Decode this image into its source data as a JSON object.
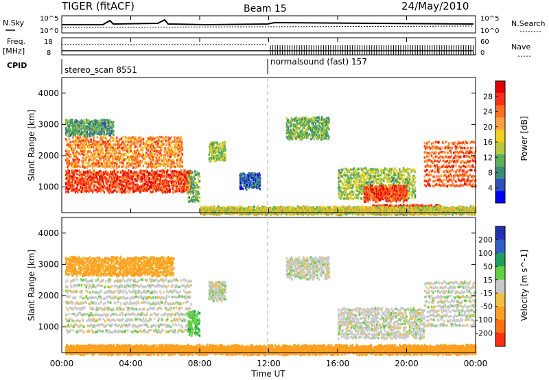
{
  "header": {
    "title": "TIGER (fitACF)",
    "beam": "Beam 15",
    "date": "24/May/2010"
  },
  "strips": {
    "nsky_label": "N.Sky",
    "nsky_ticks": [
      "10^5",
      "10^0"
    ],
    "nsearch_label": "N.Search",
    "nsearch_ticks": [
      "10^5",
      "10^0"
    ],
    "freq_label": "Freq.",
    "freq_unit": "[MHz]",
    "freq_ticks": [
      "18",
      "8"
    ],
    "nave_label": "Nave",
    "nave_ticks": [
      "60",
      "0"
    ],
    "cpid_label": "CPID",
    "cpid_segments": [
      {
        "name": "stereo_scan 8551",
        "start_hour": 0,
        "end_hour": 12
      },
      {
        "name": "normalsound (fast) 157",
        "start_hour": 12,
        "end_hour": 24
      }
    ]
  },
  "axes": {
    "ylabel": "Slant Range [km]",
    "xlabel": "Time UT",
    "x_ticks": [
      "00:00",
      "04:00",
      "08:00",
      "12:00",
      "16:00",
      "20:00",
      "00:00"
    ],
    "y_ticks": [
      "1000",
      "2000",
      "3000",
      "4000"
    ]
  },
  "power_scale": {
    "label": "Power [dB]",
    "ticks": [
      "4",
      "8",
      "12",
      "16",
      "20",
      "24",
      "28"
    ],
    "colors": [
      "#0000ff",
      "#2e50b8",
      "#3a8c78",
      "#5bb05b",
      "#b7c83c",
      "#f0d020",
      "#ffa040",
      "#ff7020",
      "#ff3018",
      "#e00000"
    ]
  },
  "velocity_scale": {
    "label": "Velocity [m s^-1]",
    "ticks": [
      "200",
      "100",
      "50",
      "15",
      "-15",
      "-50",
      "-100",
      "-200"
    ],
    "colors": [
      "#2030b0",
      "#3060c8",
      "#20a060",
      "#60d040",
      "#c8c8c8",
      "#f0c040",
      "#ffa020",
      "#ff7010",
      "#ff3010"
    ]
  },
  "chart_data": [
    {
      "type": "heatmap",
      "name": "power",
      "x_range_hours": [
        0,
        24
      ],
      "y_range_km": [
        180,
        4500
      ],
      "bands": [
        {
          "t0": 0.2,
          "t1": 7.5,
          "r0": 900,
          "r1": 1600,
          "dB": 26
        },
        {
          "t0": 0.2,
          "t1": 7.0,
          "r0": 1700,
          "r1": 2700,
          "dB": 22
        },
        {
          "t0": 0.2,
          "t1": 3.0,
          "r0": 2700,
          "r1": 3200,
          "dB": 10
        },
        {
          "t0": 7.3,
          "t1": 8.0,
          "r0": 600,
          "r1": 1600,
          "dB": 12
        },
        {
          "t0": 8.5,
          "t1": 9.5,
          "r0": 1900,
          "r1": 2500,
          "dB": 14
        },
        {
          "t0": 10.3,
          "t1": 11.5,
          "r0": 1000,
          "r1": 1500,
          "dB": 6
        },
        {
          "t0": 13.0,
          "t1": 15.5,
          "r0": 2600,
          "r1": 3300,
          "dB": 12
        },
        {
          "t0": 16.0,
          "t1": 20.5,
          "r0": 700,
          "r1": 1700,
          "dB": 14
        },
        {
          "t0": 17.5,
          "t1": 20.0,
          "r0": 600,
          "r1": 1100,
          "dB": 26
        },
        {
          "t0": 18.0,
          "t1": 22.0,
          "r0": 200,
          "r1": 450,
          "dB": 28
        },
        {
          "t0": 21.0,
          "t1": 24.0,
          "r0": 1100,
          "r1": 2600,
          "dB": 24
        },
        {
          "t0": 8.0,
          "t1": 24.0,
          "r0": 180,
          "r1": 400,
          "dB": 16
        }
      ]
    },
    {
      "type": "heatmap",
      "name": "velocity",
      "x_range_hours": [
        0,
        24
      ],
      "y_range_km": [
        180,
        4500
      ],
      "bands": [
        {
          "t0": 0.2,
          "t1": 7.5,
          "r0": 900,
          "r1": 2700,
          "v": 0
        },
        {
          "t0": 0.2,
          "t1": 6.5,
          "r0": 2700,
          "r1": 3300,
          "v": -60
        },
        {
          "t0": 7.3,
          "t1": 8.0,
          "r0": 800,
          "r1": 1600,
          "v": 40
        },
        {
          "t0": 8.5,
          "t1": 9.5,
          "r0": 1900,
          "r1": 2500,
          "v": 0
        },
        {
          "t0": 13.0,
          "t1": 15.5,
          "r0": 2600,
          "r1": 3300,
          "v": 0
        },
        {
          "t0": 16.0,
          "t1": 21.0,
          "r0": 700,
          "r1": 1700,
          "v": 0
        },
        {
          "t0": 21.0,
          "t1": 24.0,
          "r0": 1100,
          "r1": 2600,
          "v": 0
        },
        {
          "t0": 0.2,
          "t1": 24.0,
          "r0": 180,
          "r1": 450,
          "v": -80
        }
      ]
    }
  ]
}
